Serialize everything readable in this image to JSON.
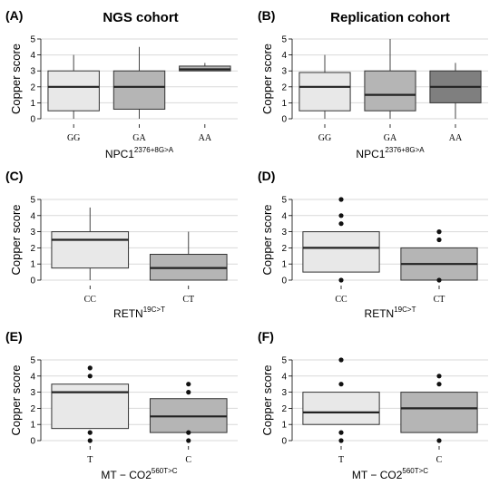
{
  "titles": {
    "left": "NGS cohort",
    "right": "Replication cohort"
  },
  "colors": {
    "light": "#e8e8e8",
    "mid": "#b5b5b5",
    "dark": "#7f7f7f",
    "grid": "#d9d9d9"
  },
  "chart_data": [
    {
      "panel": "(A)",
      "type": "box",
      "ylabel": "Copper score",
      "xlabel": "NPC1",
      "xlabel_sup": "2376+8G>A",
      "ylim": [
        0,
        5
      ],
      "boxes": [
        {
          "category": "GG",
          "whisker_low": 0,
          "q1": 0.5,
          "median": 2,
          "q3": 3,
          "whisker_high": 4,
          "outliers": [],
          "color": "light"
        },
        {
          "category": "GA",
          "whisker_low": 0,
          "q1": 0.6,
          "median": 2,
          "q3": 3,
          "whisker_high": 4.5,
          "outliers": [],
          "color": "mid"
        },
        {
          "category": "AA",
          "whisker_low": 3,
          "q1": 3,
          "median": 3.1,
          "q3": 3.3,
          "whisker_high": 3.5,
          "outliers": [],
          "color": "mid"
        }
      ]
    },
    {
      "panel": "(B)",
      "type": "box",
      "ylabel": "Copper score",
      "xlabel": "NPC1",
      "xlabel_sup": "2376+8G>A",
      "ylim": [
        0,
        5
      ],
      "boxes": [
        {
          "category": "GG",
          "whisker_low": 0,
          "q1": 0.5,
          "median": 2,
          "q3": 2.9,
          "whisker_high": 4,
          "outliers": [],
          "color": "light"
        },
        {
          "category": "GA",
          "whisker_low": 0,
          "q1": 0.5,
          "median": 1.5,
          "q3": 3,
          "whisker_high": 5,
          "outliers": [],
          "color": "mid"
        },
        {
          "category": "AA",
          "whisker_low": 0,
          "q1": 1,
          "median": 2,
          "q3": 3,
          "whisker_high": 3.5,
          "outliers": [],
          "color": "dark"
        }
      ]
    },
    {
      "panel": "(C)",
      "type": "box",
      "ylabel": "Copper score",
      "xlabel": "RETN",
      "xlabel_sup": "19C>T",
      "ylim": [
        0,
        5
      ],
      "boxes": [
        {
          "category": "CC",
          "whisker_low": 0,
          "q1": 0.75,
          "median": 2.5,
          "q3": 3,
          "whisker_high": 4.5,
          "outliers": [],
          "color": "light"
        },
        {
          "category": "CT",
          "whisker_low": 0,
          "q1": 0,
          "median": 0.75,
          "q3": 1.6,
          "whisker_high": 3,
          "outliers": [],
          "color": "mid"
        }
      ]
    },
    {
      "panel": "(D)",
      "type": "box",
      "ylabel": "Copper score",
      "xlabel": "RETN",
      "xlabel_sup": "19C>T",
      "ylim": [
        0,
        5
      ],
      "boxes": [
        {
          "category": "CC",
          "whisker_low": 0.5,
          "q1": 0.5,
          "median": 2,
          "q3": 3,
          "whisker_high": 3,
          "outliers": [
            5,
            4,
            3.5,
            0
          ],
          "color": "light"
        },
        {
          "category": "CT",
          "whisker_low": 0,
          "q1": 0,
          "median": 1,
          "q3": 2,
          "whisker_high": 2,
          "outliers": [
            3,
            2.5,
            0
          ],
          "color": "mid"
        }
      ]
    },
    {
      "panel": "(E)",
      "type": "box",
      "ylabel": "Copper score",
      "xlabel": "MT − CO2",
      "xlabel_sup": "560T>C",
      "ylim": [
        0,
        5
      ],
      "boxes": [
        {
          "category": "T",
          "whisker_low": 0.75,
          "q1": 0.75,
          "median": 3,
          "q3": 3.5,
          "whisker_high": 3.5,
          "outliers": [
            4.5,
            4,
            0.5,
            0
          ],
          "color": "light"
        },
        {
          "category": "C",
          "whisker_low": 0.5,
          "q1": 0.5,
          "median": 1.5,
          "q3": 2.6,
          "whisker_high": 2.6,
          "outliers": [
            3.5,
            3,
            0.5,
            0
          ],
          "color": "mid"
        }
      ]
    },
    {
      "panel": "(F)",
      "type": "box",
      "ylabel": "Copper score",
      "xlabel": "MT − CO2",
      "xlabel_sup": "560T>C",
      "ylim": [
        0,
        5
      ],
      "boxes": [
        {
          "category": "T",
          "whisker_low": 1,
          "q1": 1,
          "median": 1.75,
          "q3": 3,
          "whisker_high": 3,
          "outliers": [
            5,
            3.5,
            0.5,
            0
          ],
          "color": "light"
        },
        {
          "category": "C",
          "whisker_low": 0.5,
          "q1": 0.5,
          "median": 2,
          "q3": 3,
          "whisker_high": 3,
          "outliers": [
            4,
            3.5,
            0
          ],
          "color": "mid"
        }
      ]
    }
  ]
}
